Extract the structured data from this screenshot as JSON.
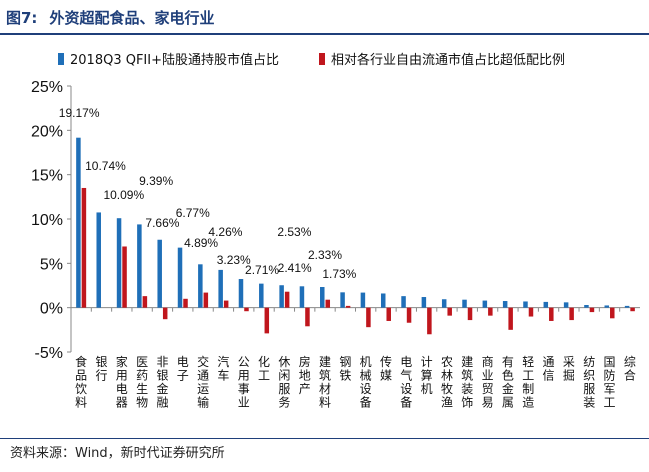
{
  "figure": {
    "label": "图7:",
    "title": "外资超配食品、家电行业",
    "source": "资料来源：Wind，新时代证券研究所"
  },
  "chart_data": {
    "type": "bar",
    "categories": [
      "食品饮料",
      "银行",
      "家用电器",
      "医药生物",
      "非银金融",
      "电子",
      "交通运输",
      "汽车",
      "公用事业",
      "化工",
      "休闲服务",
      "房地产",
      "建筑材料",
      "钢铁",
      "机械设备",
      "传媒",
      "电气设备",
      "计算机",
      "农林牧渔",
      "建筑装饰",
      "商业贸易",
      "有色金属",
      "轻工制造",
      "通信",
      "采掘",
      "纺织服装",
      "国防军工",
      "综合"
    ],
    "series": [
      {
        "name": "2018Q3 QFII+陆股通持股市值占比",
        "color": "#1f6fb8",
        "values": [
          19.17,
          10.74,
          10.09,
          9.39,
          7.66,
          6.77,
          4.89,
          4.26,
          3.23,
          2.71,
          2.53,
          2.41,
          2.33,
          1.73,
          1.7,
          1.6,
          1.3,
          1.2,
          0.95,
          0.9,
          0.8,
          0.75,
          0.7,
          0.65,
          0.6,
          0.3,
          0.25,
          0.2
        ]
      },
      {
        "name": "相对各行业自由流通市值占比超低配比例",
        "color": "#c0161d",
        "values": [
          13.5,
          0.0,
          6.9,
          1.3,
          -1.3,
          1.0,
          1.7,
          0.8,
          -0.4,
          -2.9,
          1.8,
          -2.1,
          0.9,
          0.2,
          -2.2,
          -1.5,
          -1.7,
          -3.0,
          -0.9,
          -1.4,
          -0.9,
          -2.5,
          -1.0,
          -1.5,
          -1.4,
          -0.5,
          -1.2,
          -0.4
        ]
      }
    ],
    "data_labels": [
      "19.17%",
      "10.74%",
      "10.09%",
      "9.39%",
      "7.66%",
      "6.77%",
      "4.89%",
      "4.26%",
      "3.23%",
      "2.71%",
      "2.53%",
      "2.41%",
      "2.33%",
      "1.73%"
    ],
    "yticks": [
      "25%",
      "20%",
      "15%",
      "10%",
      "5%",
      "0%",
      "-5%"
    ],
    "yticks_values": [
      25,
      20,
      15,
      10,
      5,
      0,
      -5
    ],
    "ylim": [
      -5,
      25
    ],
    "legend_position": "top",
    "grid": false
  }
}
